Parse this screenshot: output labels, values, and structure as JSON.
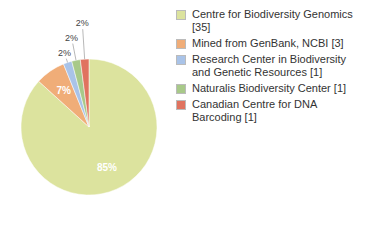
{
  "chart_data": {
    "type": "pie",
    "categories": [
      "Centre for Biodiversity Genomics [35]",
      "Mined from GenBank, NCBI [3]",
      "Research Center in Biodiversity and Genetic Resources [1]",
      "Naturalis Biodiversity Center [1]",
      "Canadian Centre for DNA Barcoding [1]"
    ],
    "values": [
      85,
      7,
      2,
      2,
      2
    ],
    "value_labels": [
      "85%",
      "7%",
      "2%",
      "2%",
      "2%"
    ],
    "colors": [
      "#dce39e",
      "#f0ad78",
      "#a9c3e8",
      "#a8c989",
      "#e0735f"
    ],
    "data_labels": true,
    "legend": "right"
  }
}
